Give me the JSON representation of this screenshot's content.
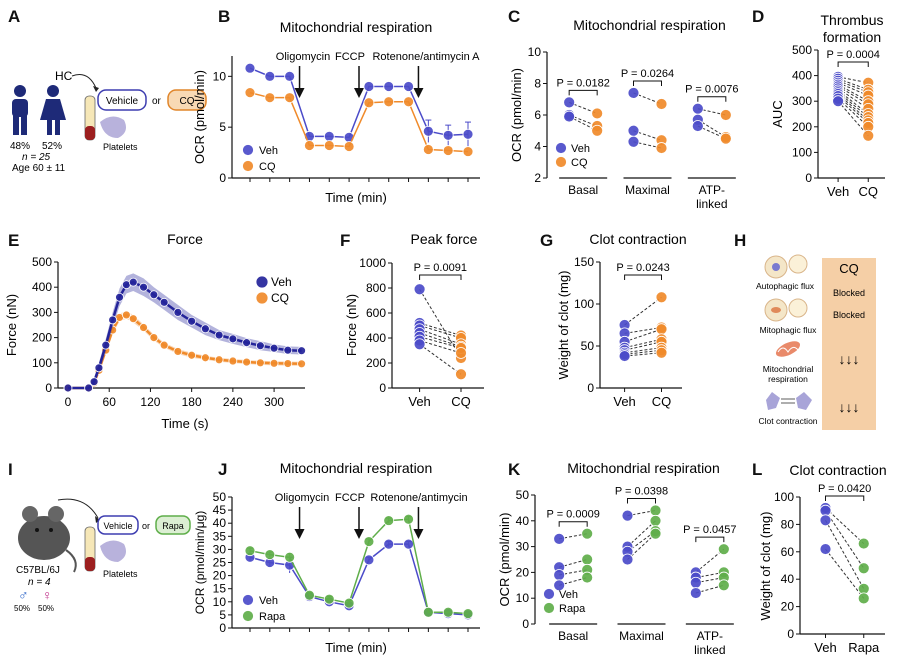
{
  "colors": {
    "veh": "#4b4bc9",
    "veh_dark": "#24249a",
    "cq": "#f08a2a",
    "rapa": "#5fae4a",
    "panel_h_bg": "#f5cfa6",
    "text": "#111111"
  },
  "panel_letters": [
    "A",
    "B",
    "C",
    "D",
    "E",
    "F",
    "G",
    "H",
    "I",
    "J",
    "K",
    "L"
  ],
  "panel_a": {
    "cohort_label": "HC",
    "male_pct": "48%",
    "female_pct": "52%",
    "n_label": "n = 25",
    "age_label": "Age 60 ± 11",
    "vehicle_label": "Vehicle",
    "or_label": "or",
    "treatment_label": "CQ",
    "platelets_label": "Platelets"
  },
  "panel_i": {
    "strain_label": "C57BL/6J",
    "n_label": "n = 4",
    "male_symbol": "♂",
    "female_symbol": "♀",
    "male_pct": "50%",
    "female_pct": "50%",
    "vehicle_label": "Vehicle",
    "or_label": "or",
    "treatment_label": "Rapa",
    "platelets_label": "Platelets"
  },
  "panel_h": {
    "header": "CQ",
    "rows": [
      {
        "label": "Autophagic flux",
        "effect": "Blocked"
      },
      {
        "label": "Mitophagic flux",
        "effect": "Blocked"
      },
      {
        "label": "Mitochondrial respiration",
        "effect": "↓↓↓"
      },
      {
        "label": "Clot contraction",
        "effect": "↓↓↓"
      }
    ]
  },
  "chart_data": [
    {
      "id": "B",
      "type": "line",
      "title": "Mitochondrial respiration",
      "xlabel": "Time (min)",
      "ylabel": "OCR (pmol/min)",
      "ylim": [
        0,
        12
      ],
      "yticks": [
        0,
        5,
        10
      ],
      "injections": [
        "Oligomycin",
        "FCCP",
        "Rotenone/antimycin A"
      ],
      "series": [
        {
          "name": "Veh",
          "values": [
            10.8,
            10.0,
            10.0,
            4.1,
            4.1,
            4.0,
            9.0,
            9.0,
            9.0,
            4.6,
            4.2,
            4.3
          ],
          "errors": [
            0.4,
            0.3,
            0.3,
            0.5,
            0.4,
            0.4,
            0.4,
            0.4,
            0.4,
            1.1,
            1.0,
            1.2
          ]
        },
        {
          "name": "CQ",
          "values": [
            8.4,
            7.9,
            7.9,
            3.2,
            3.2,
            3.1,
            7.4,
            7.5,
            7.5,
            2.8,
            2.7,
            2.6
          ],
          "errors": [
            0.3,
            0.3,
            0.3,
            0.3,
            0.3,
            0.3,
            0.3,
            0.3,
            0.3,
            0.4,
            0.3,
            0.3
          ]
        }
      ],
      "legend": [
        "Veh",
        "CQ"
      ]
    },
    {
      "id": "C",
      "type": "scatter",
      "title": "Mitochondrial respiration",
      "ylabel": "OCR (pmol/min)",
      "ylim": [
        2,
        10
      ],
      "yticks": [
        2,
        4,
        6,
        8,
        10
      ],
      "groups": [
        {
          "label": "Basal",
          "p": "P = 0.0182",
          "veh": [
            6.8,
            6.0,
            5.9
          ],
          "cq": [
            6.1,
            5.3,
            5.0
          ]
        },
        {
          "label": "Maximal",
          "p": "P = 0.0264",
          "veh": [
            7.4,
            5.0,
            4.3
          ],
          "cq": [
            6.7,
            4.4,
            3.9
          ]
        },
        {
          "label": "ATP-linked",
          "p": "P = 0.0076",
          "veh": [
            6.4,
            5.7,
            5.3
          ],
          "cq": [
            6.0,
            4.6,
            4.5
          ]
        }
      ],
      "legend": [
        "Veh",
        "CQ"
      ]
    },
    {
      "id": "D",
      "type": "scatter",
      "title": "Thrombus formation",
      "ylabel": "AUC",
      "ylim": [
        0,
        500
      ],
      "yticks": [
        0,
        100,
        200,
        300,
        400,
        500
      ],
      "categories": [
        "Veh",
        "CQ"
      ],
      "p": "P = 0.0004",
      "veh": [
        395,
        388,
        380,
        372,
        365,
        358,
        350,
        342,
        335,
        328,
        320,
        310,
        300
      ],
      "cq": [
        372,
        345,
        335,
        322,
        300,
        288,
        270,
        250,
        238,
        225,
        215,
        200,
        165
      ]
    },
    {
      "id": "E",
      "type": "line",
      "title": "Force",
      "xlabel": "Time (s)",
      "ylabel": "Force (nN)",
      "xlim": [
        0,
        345
      ],
      "ylim": [
        0,
        500
      ],
      "xticks": [
        0,
        60,
        120,
        180,
        240,
        300
      ],
      "yticks": [
        0,
        100,
        200,
        300,
        400,
        500
      ],
      "series": [
        {
          "name": "Veh",
          "x": [
            0,
            30,
            38,
            45,
            55,
            65,
            75,
            85,
            95,
            110,
            125,
            140,
            160,
            180,
            200,
            220,
            240,
            260,
            280,
            300,
            320,
            340
          ],
          "values": [
            0,
            0,
            25,
            80,
            170,
            270,
            360,
            410,
            420,
            400,
            370,
            340,
            300,
            265,
            235,
            210,
            195,
            180,
            168,
            158,
            150,
            148
          ],
          "errors": [
            0,
            0,
            15,
            20,
            25,
            30,
            35,
            35,
            35,
            35,
            30,
            30,
            30,
            25,
            25,
            20,
            20,
            18,
            18,
            15,
            15,
            15
          ]
        },
        {
          "name": "CQ",
          "x": [
            0,
            30,
            38,
            45,
            55,
            65,
            75,
            85,
            95,
            110,
            125,
            140,
            160,
            180,
            200,
            220,
            240,
            260,
            280,
            300,
            320,
            340
          ],
          "values": [
            0,
            0,
            20,
            70,
            150,
            230,
            280,
            290,
            275,
            240,
            200,
            170,
            145,
            130,
            120,
            112,
            107,
            103,
            100,
            98,
            97,
            96
          ],
          "errors": [
            0,
            0,
            10,
            12,
            15,
            15,
            15,
            15,
            15,
            12,
            12,
            10,
            10,
            10,
            8,
            8,
            8,
            8,
            8,
            8,
            8,
            8
          ]
        }
      ],
      "legend": [
        "Veh",
        "CQ"
      ]
    },
    {
      "id": "F",
      "type": "scatter",
      "title": "Peak force",
      "ylabel": "Force (nN)",
      "ylim": [
        0,
        1000
      ],
      "yticks": [
        0,
        200,
        400,
        600,
        800,
        1000
      ],
      "categories": [
        "Veh",
        "CQ"
      ],
      "p": "P = 0.0091",
      "veh": [
        790,
        520,
        500,
        470,
        440,
        410,
        380,
        350
      ],
      "cq": [
        240,
        420,
        400,
        350,
        330,
        320,
        280,
        110
      ]
    },
    {
      "id": "G",
      "type": "scatter",
      "title": "Clot contraction",
      "ylabel": "Weight of clot (mg)",
      "ylim": [
        0,
        150
      ],
      "yticks": [
        0,
        50,
        100,
        150
      ],
      "categories": [
        "Veh",
        "CQ"
      ],
      "p": "P = 0.0243",
      "veh": [
        75,
        65,
        55,
        48,
        45,
        42,
        40,
        38
      ],
      "cq": [
        108,
        72,
        70,
        58,
        55,
        48,
        45,
        42
      ]
    },
    {
      "id": "J",
      "type": "line",
      "title": "Mitochondrial respiration",
      "xlabel": "Time (min)",
      "ylabel": "OCR (pmol/min/μg)",
      "ylim": [
        0,
        50
      ],
      "yticks": [
        0,
        5,
        10,
        15,
        20,
        25,
        30,
        35,
        40,
        45,
        50
      ],
      "injections": [
        "Oligomycin",
        "FCCP",
        "Rotenone/antimycin"
      ],
      "series": [
        {
          "name": "Veh",
          "values": [
            27.0,
            25.0,
            24.0,
            12.0,
            10.0,
            8.5,
            26.0,
            32.0,
            32.0,
            6.0,
            5.5,
            5.0
          ],
          "errors": [
            1.5,
            1.5,
            3.0,
            1.0,
            1.0,
            1.0,
            1.0,
            1.0,
            1.0,
            0.5,
            0.5,
            0.5
          ]
        },
        {
          "name": "Rapa",
          "values": [
            29.5,
            28.0,
            27.0,
            12.5,
            11.0,
            9.5,
            33.0,
            41.0,
            41.5,
            6.0,
            6.0,
            5.5
          ],
          "errors": [
            1.0,
            1.0,
            1.5,
            1.0,
            1.0,
            1.0,
            1.0,
            1.0,
            1.0,
            0.5,
            0.5,
            0.5
          ]
        }
      ],
      "legend": [
        "Veh",
        "Rapa"
      ]
    },
    {
      "id": "K",
      "type": "scatter",
      "title": "Mitochondrial respiration",
      "ylabel": "OCR (pmol/min)",
      "ylim": [
        0,
        50
      ],
      "yticks": [
        0,
        10,
        20,
        30,
        40,
        50
      ],
      "groups": [
        {
          "label": "Basal",
          "p": "P = 0.0009",
          "veh": [
            33,
            22,
            19,
            15
          ],
          "cq": [
            35,
            25,
            21,
            18
          ]
        },
        {
          "label": "Maximal",
          "p": "P = 0.0398",
          "veh": [
            42,
            30,
            28,
            25
          ],
          "cq": [
            44,
            40,
            36,
            35
          ]
        },
        {
          "label": "ATP-linked",
          "p": "P = 0.0457",
          "veh": [
            20,
            18,
            16,
            12
          ],
          "cq": [
            29,
            20,
            18,
            15
          ]
        }
      ],
      "legend": [
        "Veh",
        "Rapa"
      ]
    },
    {
      "id": "L",
      "type": "scatter",
      "title": "Clot contraction",
      "ylabel": "Weight of clot (mg)",
      "ylim": [
        0,
        100
      ],
      "yticks": [
        0,
        20,
        40,
        60,
        80,
        100
      ],
      "categories": [
        "Veh",
        "Rapa"
      ],
      "p": "P = 0.0420",
      "veh": [
        92,
        90,
        83,
        62
      ],
      "cq": [
        66,
        48,
        33,
        26
      ]
    }
  ]
}
